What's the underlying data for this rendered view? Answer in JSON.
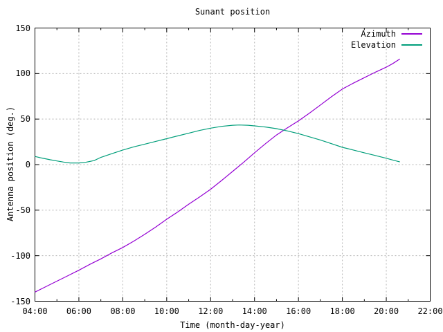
{
  "window": {
    "background": "#ffffff"
  },
  "chart_data": {
    "type": "line",
    "title": "Sunant position",
    "xlabel": "Time (month-day-year)",
    "ylabel": "Antenna position (deg.)",
    "x_range_hours": [
      4,
      22
    ],
    "x_tick_hours": [
      4,
      6,
      8,
      10,
      12,
      14,
      16,
      18,
      20,
      22
    ],
    "x_tick_labels": [
      "04:00",
      "06:00",
      "08:00",
      "10:00",
      "12:00",
      "14:00",
      "16:00",
      "18:00",
      "20:00",
      "22:00"
    ],
    "x_minor_tick_hours": [
      5,
      7,
      9,
      11,
      13,
      15,
      17,
      19,
      21
    ],
    "ylim": [
      -150,
      150
    ],
    "y_ticks": [
      150,
      100,
      50,
      0,
      -50,
      -100,
      -150
    ],
    "grid": true,
    "grid_color": "#b4b4b4",
    "axis_color": "#000000",
    "text_color": "#000000",
    "legend_position": "top-right-inside",
    "series": [
      {
        "name": "Azimuth",
        "color": "#9400d3",
        "points": [
          [
            4,
            -140
          ],
          [
            4.5,
            -134
          ],
          [
            5,
            -128
          ],
          [
            5.5,
            -122
          ],
          [
            6,
            -116
          ],
          [
            6.5,
            -109.5
          ],
          [
            7,
            -103.5
          ],
          [
            7.5,
            -97
          ],
          [
            8,
            -91
          ],
          [
            8.5,
            -84
          ],
          [
            9,
            -76.5
          ],
          [
            9.5,
            -68.5
          ],
          [
            10,
            -60
          ],
          [
            10.5,
            -52
          ],
          [
            11,
            -43.5
          ],
          [
            11.5,
            -35.5
          ],
          [
            12,
            -27
          ],
          [
            12.5,
            -17.5
          ],
          [
            13,
            -7.5
          ],
          [
            13.5,
            2.5
          ],
          [
            14,
            13
          ],
          [
            14.5,
            23
          ],
          [
            15,
            32.5
          ],
          [
            15.5,
            40.5
          ],
          [
            16,
            48
          ],
          [
            16.5,
            56.5
          ],
          [
            17,
            65.5
          ],
          [
            17.5,
            74.5
          ],
          [
            18,
            83
          ],
          [
            18.5,
            89.5
          ],
          [
            19,
            95.5
          ],
          [
            19.5,
            101.5
          ],
          [
            20,
            107
          ],
          [
            20.3,
            111
          ],
          [
            20.62,
            116
          ]
        ]
      },
      {
        "name": "Elevation",
        "color": "#009e7a",
        "points": [
          [
            4,
            9
          ],
          [
            4.3,
            7.3
          ],
          [
            4.7,
            5.3
          ],
          [
            5,
            4
          ],
          [
            5.3,
            2.8
          ],
          [
            5.6,
            1.8
          ],
          [
            6,
            1.8
          ],
          [
            6.3,
            2.5
          ],
          [
            6.7,
            4.5
          ],
          [
            7,
            8
          ],
          [
            7.5,
            12
          ],
          [
            8,
            16
          ],
          [
            8.5,
            19.5
          ],
          [
            9,
            22.5
          ],
          [
            9.5,
            25.5
          ],
          [
            10,
            28.5
          ],
          [
            10.5,
            31.5
          ],
          [
            11,
            34.5
          ],
          [
            11.5,
            37.5
          ],
          [
            12,
            40
          ],
          [
            12.5,
            42
          ],
          [
            13,
            43.2
          ],
          [
            13.3,
            43.5
          ],
          [
            13.7,
            43.2
          ],
          [
            14,
            42.5
          ],
          [
            14.5,
            41.3
          ],
          [
            15,
            39.5
          ],
          [
            15.5,
            37
          ],
          [
            16,
            34
          ],
          [
            16.5,
            30.5
          ],
          [
            17,
            27
          ],
          [
            17.5,
            23
          ],
          [
            18,
            19
          ],
          [
            18.5,
            16
          ],
          [
            19,
            13
          ],
          [
            19.5,
            10
          ],
          [
            20,
            7
          ],
          [
            20.3,
            5
          ],
          [
            20.62,
            3
          ]
        ]
      }
    ]
  }
}
